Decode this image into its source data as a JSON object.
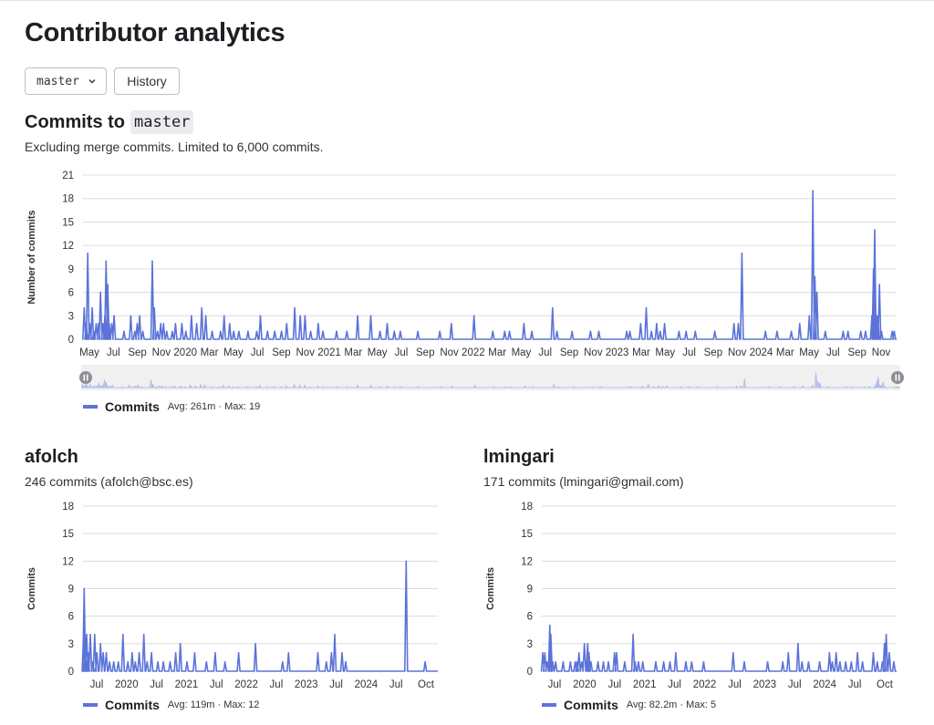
{
  "page": {
    "title": "Contributor analytics"
  },
  "toolbar": {
    "branch_label": "master",
    "history_label": "History"
  },
  "main_chart": {
    "title_prefix": "Commits to",
    "branch": "master",
    "subtitle": "Excluding merge commits. Limited to 6,000 commits.",
    "legend": {
      "name": "Commits",
      "stats": "Avg: 261m · Max: 19"
    }
  },
  "users": [
    {
      "name": "afolch",
      "info": "246 commits (afolch@bsc.es)",
      "legend_name": "Commits",
      "legend_stats": "Avg: 119m · Max: 12"
    },
    {
      "name": "lmingari",
      "info": "171 commits (lmingari@gmail.com)",
      "legend_name": "Commits",
      "legend_stats": "Avg: 82.2m · Max: 5"
    }
  ],
  "colors": {
    "series": "#5b73d9",
    "grid": "#dcdcde",
    "axis_text": "#333238"
  },
  "chart_data": [
    {
      "type": "line",
      "ylabel": "Number of commits",
      "ylim": [
        0,
        21
      ],
      "yticks": [
        0,
        3,
        6,
        9,
        12,
        15,
        18,
        21
      ],
      "xrange": [
        "2019-05-01",
        "2024-12-01"
      ],
      "xticks": [
        "May",
        "Jul",
        "Sep",
        "Nov",
        "2020",
        "Mar",
        "May",
        "Jul",
        "Sep",
        "Nov",
        "2021",
        "Mar",
        "May",
        "Jul",
        "Sep",
        "Nov",
        "2022",
        "Mar",
        "May",
        "Jul",
        "Sep",
        "Nov",
        "2023",
        "Mar",
        "May",
        "Jul",
        "Sep",
        "Nov",
        "2024",
        "Mar",
        "May",
        "Jul",
        "Sep",
        "Nov"
      ],
      "series": [
        {
          "name": "Commits",
          "points": [
            [
              "2019-05-04",
              4
            ],
            [
              "2019-05-09",
              2
            ],
            [
              "2019-05-13",
              11
            ],
            [
              "2019-05-18",
              2
            ],
            [
              "2019-05-24",
              4
            ],
            [
              "2019-05-28",
              1
            ],
            [
              "2019-06-03",
              2
            ],
            [
              "2019-06-09",
              2
            ],
            [
              "2019-06-14",
              6
            ],
            [
              "2019-06-20",
              2
            ],
            [
              "2019-06-25",
              3
            ],
            [
              "2019-06-28",
              10
            ],
            [
              "2019-07-02",
              7
            ],
            [
              "2019-07-06",
              2
            ],
            [
              "2019-07-12",
              2
            ],
            [
              "2019-07-18",
              3
            ],
            [
              "2019-08-12",
              1
            ],
            [
              "2019-08-29",
              3
            ],
            [
              "2019-09-08",
              1
            ],
            [
              "2019-09-14",
              2
            ],
            [
              "2019-09-20",
              3
            ],
            [
              "2019-09-28",
              1
            ],
            [
              "2019-10-22",
              10
            ],
            [
              "2019-10-27",
              4
            ],
            [
              "2019-11-04",
              1
            ],
            [
              "2019-11-12",
              2
            ],
            [
              "2019-11-19",
              2
            ],
            [
              "2019-11-27",
              1
            ],
            [
              "2019-12-11",
              1
            ],
            [
              "2019-12-19",
              2
            ],
            [
              "2020-01-04",
              2
            ],
            [
              "2020-01-14",
              1
            ],
            [
              "2020-01-28",
              3
            ],
            [
              "2020-02-10",
              2
            ],
            [
              "2020-02-23",
              4
            ],
            [
              "2020-03-04",
              3
            ],
            [
              "2020-03-20",
              1
            ],
            [
              "2020-04-10",
              1
            ],
            [
              "2020-04-19",
              3
            ],
            [
              "2020-05-03",
              2
            ],
            [
              "2020-05-13",
              1
            ],
            [
              "2020-05-26",
              1
            ],
            [
              "2020-06-18",
              1
            ],
            [
              "2020-07-10",
              1
            ],
            [
              "2020-07-19",
              3
            ],
            [
              "2020-08-06",
              1
            ],
            [
              "2020-08-24",
              1
            ],
            [
              "2020-09-10",
              1
            ],
            [
              "2020-09-23",
              2
            ],
            [
              "2020-10-13",
              4
            ],
            [
              "2020-10-27",
              3
            ],
            [
              "2020-11-08",
              3
            ],
            [
              "2020-11-22",
              1
            ],
            [
              "2020-12-11",
              2
            ],
            [
              "2020-12-23",
              1
            ],
            [
              "2021-01-26",
              1
            ],
            [
              "2021-02-21",
              1
            ],
            [
              "2021-03-20",
              3
            ],
            [
              "2021-04-22",
              3
            ],
            [
              "2021-05-15",
              1
            ],
            [
              "2021-06-02",
              2
            ],
            [
              "2021-06-20",
              1
            ],
            [
              "2021-07-05",
              1
            ],
            [
              "2021-08-18",
              1
            ],
            [
              "2021-10-12",
              1
            ],
            [
              "2021-11-10",
              2
            ],
            [
              "2022-01-06",
              3
            ],
            [
              "2022-02-22",
              1
            ],
            [
              "2022-03-24",
              1
            ],
            [
              "2022-04-05",
              1
            ],
            [
              "2022-05-11",
              2
            ],
            [
              "2022-05-31",
              1
            ],
            [
              "2022-07-22",
              4
            ],
            [
              "2022-08-02",
              1
            ],
            [
              "2022-09-09",
              1
            ],
            [
              "2022-10-25",
              1
            ],
            [
              "2022-11-15",
              1
            ],
            [
              "2023-01-24",
              1
            ],
            [
              "2023-02-01",
              1
            ],
            [
              "2023-02-28",
              2
            ],
            [
              "2023-03-14",
              4
            ],
            [
              "2023-03-27",
              1
            ],
            [
              "2023-04-09",
              2
            ],
            [
              "2023-04-18",
              1
            ],
            [
              "2023-04-29",
              2
            ],
            [
              "2023-06-04",
              1
            ],
            [
              "2023-06-22",
              1
            ],
            [
              "2023-07-15",
              1
            ],
            [
              "2023-09-02",
              1
            ],
            [
              "2023-10-20",
              2
            ],
            [
              "2023-10-31",
              2
            ],
            [
              "2023-11-09",
              11
            ],
            [
              "2024-01-07",
              1
            ],
            [
              "2024-02-05",
              1
            ],
            [
              "2024-03-12",
              1
            ],
            [
              "2024-04-02",
              2
            ],
            [
              "2024-04-26",
              3
            ],
            [
              "2024-05-05",
              19
            ],
            [
              "2024-05-10",
              8
            ],
            [
              "2024-05-15",
              6
            ],
            [
              "2024-06-05",
              1
            ],
            [
              "2024-07-20",
              1
            ],
            [
              "2024-08-01",
              1
            ],
            [
              "2024-09-02",
              1
            ],
            [
              "2024-09-14",
              1
            ],
            [
              "2024-09-30",
              3
            ],
            [
              "2024-10-04",
              9
            ],
            [
              "2024-10-07",
              14
            ],
            [
              "2024-10-11",
              3
            ],
            [
              "2024-10-15",
              3
            ],
            [
              "2024-10-19",
              7
            ],
            [
              "2024-10-24",
              1
            ],
            [
              "2024-11-20",
              1
            ],
            [
              "2024-11-25",
              1
            ]
          ]
        }
      ]
    },
    {
      "type": "line",
      "ylabel": "Commits",
      "ylim": [
        0,
        18
      ],
      "yticks": [
        0,
        3,
        6,
        9,
        12,
        15,
        18
      ],
      "xrange": [
        "2019-05-01",
        "2024-12-01"
      ],
      "xticks": [
        "Jul",
        "2020",
        "Jul",
        "2021",
        "Jul",
        "2022",
        "Jul",
        "2023",
        "Jul",
        "2024",
        "Jul",
        "Oct"
      ],
      "series": [
        {
          "name": "Commits",
          "points": [
            [
              "2019-05-04",
              4
            ],
            [
              "2019-05-08",
              9
            ],
            [
              "2019-05-14",
              2
            ],
            [
              "2019-05-22",
              4
            ],
            [
              "2019-05-30",
              2
            ],
            [
              "2019-06-12",
              4
            ],
            [
              "2019-06-26",
              1
            ],
            [
              "2019-07-07",
              4
            ],
            [
              "2019-07-20",
              2
            ],
            [
              "2019-08-10",
              3
            ],
            [
              "2019-08-25",
              2
            ],
            [
              "2019-09-12",
              2
            ],
            [
              "2019-10-01",
              1
            ],
            [
              "2019-10-25",
              1
            ],
            [
              "2019-11-20",
              1
            ],
            [
              "2019-12-17",
              4
            ],
            [
              "2020-01-14",
              1
            ],
            [
              "2020-02-08",
              2
            ],
            [
              "2020-02-26",
              1
            ],
            [
              "2020-03-19",
              2
            ],
            [
              "2020-04-15",
              4
            ],
            [
              "2020-05-04",
              1
            ],
            [
              "2020-05-29",
              2
            ],
            [
              "2020-07-05",
              1
            ],
            [
              "2020-08-05",
              1
            ],
            [
              "2020-09-13",
              1
            ],
            [
              "2020-10-15",
              2
            ],
            [
              "2020-11-11",
              3
            ],
            [
              "2020-12-19",
              1
            ],
            [
              "2021-02-01",
              2
            ],
            [
              "2021-04-10",
              1
            ],
            [
              "2021-05-30",
              2
            ],
            [
              "2021-07-26",
              1
            ],
            [
              "2021-10-12",
              2
            ],
            [
              "2022-01-17",
              3
            ],
            [
              "2022-06-22",
              1
            ],
            [
              "2022-07-26",
              2
            ],
            [
              "2023-01-11",
              2
            ],
            [
              "2023-03-01",
              1
            ],
            [
              "2023-03-30",
              2
            ],
            [
              "2023-04-18",
              4
            ],
            [
              "2023-05-30",
              2
            ],
            [
              "2023-06-20",
              1
            ],
            [
              "2024-06-02",
              12
            ],
            [
              "2024-09-19",
              1
            ]
          ]
        }
      ]
    },
    {
      "type": "line",
      "ylabel": "Commits",
      "ylim": [
        0,
        18
      ],
      "yticks": [
        0,
        3,
        6,
        9,
        12,
        15,
        18
      ],
      "xrange": [
        "2019-05-01",
        "2024-12-01"
      ],
      "xticks": [
        "Jul",
        "2020",
        "Jul",
        "2021",
        "Jul",
        "2022",
        "Jul",
        "2023",
        "Jul",
        "2024",
        "Jul",
        "Oct"
      ],
      "series": [
        {
          "name": "Commits",
          "points": [
            [
              "2019-05-07",
              2
            ],
            [
              "2019-05-19",
              2
            ],
            [
              "2019-06-01",
              1
            ],
            [
              "2019-06-16",
              5
            ],
            [
              "2019-06-22",
              4
            ],
            [
              "2019-07-03",
              1
            ],
            [
              "2019-07-20",
              1
            ],
            [
              "2019-09-01",
              1
            ],
            [
              "2019-10-13",
              1
            ],
            [
              "2019-11-09",
              1
            ],
            [
              "2019-11-20",
              1
            ],
            [
              "2019-12-01",
              2
            ],
            [
              "2019-12-17",
              1
            ],
            [
              "2020-01-01",
              3
            ],
            [
              "2020-01-20",
              3
            ],
            [
              "2020-01-27",
              2
            ],
            [
              "2020-02-08",
              1
            ],
            [
              "2020-03-19",
              1
            ],
            [
              "2020-04-19",
              1
            ],
            [
              "2020-05-18",
              1
            ],
            [
              "2020-06-22",
              2
            ],
            [
              "2020-07-04",
              2
            ],
            [
              "2020-08-20",
              1
            ],
            [
              "2020-10-07",
              4
            ],
            [
              "2020-10-19",
              1
            ],
            [
              "2020-11-07",
              1
            ],
            [
              "2020-12-02",
              1
            ],
            [
              "2021-02-15",
              1
            ],
            [
              "2021-04-01",
              1
            ],
            [
              "2021-05-07",
              1
            ],
            [
              "2021-06-10",
              2
            ],
            [
              "2021-08-07",
              1
            ],
            [
              "2021-09-09",
              1
            ],
            [
              "2021-11-17",
              1
            ],
            [
              "2022-05-06",
              2
            ],
            [
              "2022-07-09",
              1
            ],
            [
              "2022-11-20",
              1
            ],
            [
              "2023-02-15",
              1
            ],
            [
              "2023-03-19",
              2
            ],
            [
              "2023-05-14",
              3
            ],
            [
              "2023-06-06",
              1
            ],
            [
              "2023-07-13",
              1
            ],
            [
              "2023-09-15",
              1
            ],
            [
              "2023-11-11",
              2
            ],
            [
              "2023-11-27",
              1
            ],
            [
              "2023-12-19",
              2
            ],
            [
              "2024-01-10",
              1
            ],
            [
              "2024-02-12",
              1
            ],
            [
              "2024-03-15",
              1
            ],
            [
              "2024-04-20",
              2
            ],
            [
              "2024-05-19",
              1
            ],
            [
              "2024-07-20",
              2
            ],
            [
              "2024-08-12",
              1
            ],
            [
              "2024-09-10",
              1
            ],
            [
              "2024-09-22",
              3
            ],
            [
              "2024-10-02",
              4
            ],
            [
              "2024-10-20",
              2
            ],
            [
              "2024-11-15",
              1
            ]
          ]
        }
      ]
    }
  ]
}
